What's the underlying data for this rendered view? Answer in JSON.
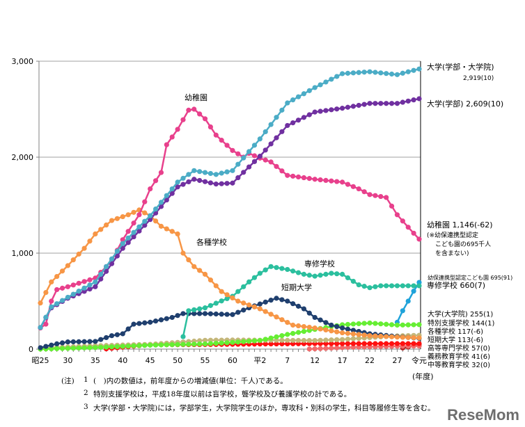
{
  "chart_data": {
    "type": "line",
    "title": "",
    "xlabel": "(年度)",
    "ylabel": "",
    "ylim": [
      0,
      3000
    ],
    "xlim": [
      1950,
      2019
    ],
    "grid": true,
    "yticks": [
      {
        "v": 0,
        "label": "0"
      },
      {
        "v": 1000,
        "label": "1,000"
      },
      {
        "v": 2000,
        "label": "2,000"
      },
      {
        "v": 3000,
        "label": "3,000"
      }
    ],
    "xticks": [
      {
        "v": 1950,
        "label": "昭25"
      },
      {
        "v": 1955,
        "label": "30"
      },
      {
        "v": 1960,
        "label": "35"
      },
      {
        "v": 1965,
        "label": "40"
      },
      {
        "v": 1970,
        "label": "45"
      },
      {
        "v": 1975,
        "label": "50"
      },
      {
        "v": 1980,
        "label": "55"
      },
      {
        "v": 1985,
        "label": "60"
      },
      {
        "v": 1990,
        "label": "平2"
      },
      {
        "v": 1995,
        "label": "7"
      },
      {
        "v": 2000,
        "label": "12"
      },
      {
        "v": 2005,
        "label": "17"
      },
      {
        "v": 2010,
        "label": "22"
      },
      {
        "v": 2015,
        "label": "27"
      },
      {
        "v": 2019,
        "label": "令元"
      }
    ],
    "series": [
      {
        "name": "大学(学部・大学院)",
        "color": "#4BACC6",
        "x": [
          1950,
          1952,
          1955,
          1960,
          1965,
          1970,
          1975,
          1978,
          1982,
          1985,
          1990,
          1995,
          2000,
          2005,
          2010,
          2015,
          2019
        ],
        "y": [
          225,
          440,
          540,
          700,
          1100,
          1390,
          1740,
          1860,
          1820,
          1860,
          2190,
          2565,
          2725,
          2870,
          2890,
          2860,
          2919
        ]
      },
      {
        "name": "大学(学部)",
        "color": "#7030A0",
        "x": [
          1950,
          1952,
          1955,
          1960,
          1965,
          1970,
          1975,
          1978,
          1982,
          1985,
          1990,
          1995,
          2000,
          2005,
          2010,
          2015,
          2019
        ],
        "y": [
          225,
          430,
          530,
          650,
          1050,
          1350,
          1690,
          1770,
          1720,
          1730,
          2010,
          2330,
          2470,
          2510,
          2560,
          2560,
          2609
        ]
      },
      {
        "name": "幼稚園",
        "color": "#E8408C",
        "x": [
          1950,
          1951,
          1952,
          1953,
          1955,
          1960,
          1963,
          1965,
          1968,
          1970,
          1972,
          1973,
          1975,
          1977,
          1978,
          1980,
          1982,
          1985,
          1987,
          1988,
          1990,
          1992,
          1995,
          2000,
          2005,
          2008,
          2010,
          2013,
          2015,
          2017,
          2019
        ],
        "y": [
          220,
          260,
          500,
          620,
          650,
          740,
          920,
          1140,
          1400,
          1670,
          1840,
          2130,
          2290,
          2490,
          2500,
          2400,
          2230,
          2070,
          2000,
          2040,
          1990,
          1950,
          1810,
          1770,
          1740,
          1670,
          1610,
          1580,
          1400,
          1270,
          1146
        ]
      },
      {
        "name": "各種学校",
        "color": "#F79646",
        "x": [
          1950,
          1952,
          1955,
          1958,
          1960,
          1963,
          1966,
          1968,
          1970,
          1972,
          1975,
          1976,
          1978,
          1980,
          1983,
          1986,
          1988,
          1990,
          1996,
          2000,
          2005,
          2010,
          2015,
          2019
        ],
        "y": [
          480,
          700,
          870,
          1050,
          1200,
          1340,
          1400,
          1450,
          1390,
          1280,
          1200,
          1000,
          860,
          780,
          600,
          500,
          460,
          420,
          250,
          220,
          170,
          140,
          125,
          117
        ]
      },
      {
        "name": "専修学校",
        "color": "#2BBF9E",
        "x": [
          1976,
          1977,
          1980,
          1985,
          1988,
          1990,
          1992,
          1995,
          1998,
          2000,
          2003,
          2005,
          2008,
          2010,
          2012,
          2015,
          2019
        ],
        "y": [
          130,
          400,
          430,
          550,
          700,
          790,
          860,
          830,
          780,
          760,
          790,
          780,
          670,
          640,
          660,
          660,
          660
        ]
      },
      {
        "name": "短期大学",
        "color": "#1F3F6E",
        "x": [
          1950,
          1953,
          1955,
          1960,
          1963,
          1965,
          1967,
          1970,
          1974,
          1976,
          1980,
          1985,
          1988,
          1990,
          1993,
          1995,
          1998,
          2000,
          2003,
          2005,
          2010,
          2015,
          2019
        ],
        "y": [
          15,
          55,
          75,
          80,
          140,
          160,
          260,
          280,
          330,
          370,
          370,
          360,
          430,
          470,
          530,
          500,
          420,
          330,
          250,
          220,
          160,
          130,
          113
        ]
      },
      {
        "name": "大学(大学院)",
        "color": "#66EE33",
        "x": [
          1950,
          1960,
          1970,
          1980,
          1985,
          1990,
          1995,
          2000,
          2005,
          2010,
          2015,
          2019
        ],
        "y": [
          0,
          16,
          41,
          54,
          70,
          90,
          153,
          205,
          254,
          272,
          250,
          255
        ]
      },
      {
        "name": "特別支援学校",
        "color": "#C4B77A",
        "x": [
          1950,
          1960,
          1970,
          1975,
          1980,
          1985,
          1990,
          2000,
          2005,
          2010,
          2015,
          2019
        ],
        "y": [
          10,
          35,
          50,
          70,
          92,
          95,
          93,
          90,
          100,
          120,
          138,
          144
        ]
      },
      {
        "name": "高等専門学校",
        "color": "#FF1010",
        "x": [
          1962,
          1965,
          1970,
          1980,
          1990,
          2000,
          2019
        ],
        "y": [
          3,
          20,
          45,
          47,
          53,
          57,
          57
        ]
      },
      {
        "name": "中等教育学校",
        "color": "#F26B6B",
        "x": [
          1999,
          2002,
          2006,
          2010,
          2015,
          2019
        ],
        "y": [
          1,
          8,
          18,
          24,
          30,
          32
        ]
      },
      {
        "name": "義務教育学校",
        "color": "#B22222",
        "x": [
          2016,
          2017,
          2018,
          2019
        ],
        "y": [
          12,
          22,
          34,
          41
        ]
      },
      {
        "name": "幼保連携型認定こども園",
        "color": "#1FA3DA",
        "x": [
          2015,
          2016,
          2017,
          2018,
          2019
        ],
        "y": [
          280,
          400,
          500,
          604,
          695
        ]
      }
    ],
    "annotations": [
      "幼稚園",
      "各種学校",
      "専修学校",
      "短期大学"
    ],
    "end_labels": [
      {
        "line1": "大学(学部・大学院)",
        "line2": "2,919(10)"
      },
      {
        "text": "大学(学部)  2,609(10)"
      },
      {
        "text": "幼稚園  1,146(-62)",
        "note": [
          "(※幼保連携型認定",
          "こども園の695千人",
          "を含まない)"
        ]
      },
      {
        "text": "幼保連携型認定こども園  695(91)"
      },
      {
        "text": "専修学校  660(7)"
      },
      {
        "text": "大学(大学院)  255(1)"
      },
      {
        "text": "特別支援学校  144(1)"
      },
      {
        "text": "各種学校  117(-6)"
      },
      {
        "text": "短期大学  113(-6)"
      },
      {
        "text": "高等専門学校  57(0)"
      },
      {
        "text": "義務教育学校  41(6)"
      },
      {
        "text": "中等教育学校  32(0)"
      }
    ]
  },
  "notes": {
    "prefix": "(注)",
    "items": [
      {
        "num": "1",
        "text": "(　)内の数値は，前年度からの増減値(単位：千人)である。"
      },
      {
        "num": "2",
        "text": "特別支援学校は，平成18年度以前は盲学校，聾学校及び養護学校の計である。"
      },
      {
        "num": "3",
        "text": "大学(学部・大学院)には，学部学生，大学院学生のほか，専攻科・別科の学生，科目等履修生等を含む。"
      }
    ]
  },
  "watermark": "ReseMom"
}
